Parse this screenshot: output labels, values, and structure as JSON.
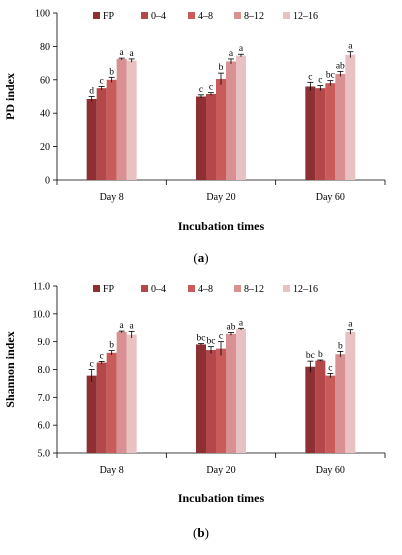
{
  "legend_labels": [
    "FP",
    "0–4",
    "4–8",
    "8–12",
    "12–16"
  ],
  "colors": [
    "#8E3033",
    "#B3474A",
    "#C95B5B",
    "#D99093",
    "#E8C1C2"
  ],
  "chart_data": [
    {
      "type": "bar",
      "panel_label": "(a)",
      "panel_letter": "a",
      "xlabel": "Incubation times",
      "ylabel": "PD index",
      "ylim": [
        0,
        100
      ],
      "yticks": [
        "0",
        "20",
        "40",
        "60",
        "80",
        "100"
      ],
      "categories": [
        "Day 8",
        "Day 20",
        "Day 60"
      ],
      "legend_position": "top",
      "series": [
        {
          "name": "FP",
          "values": [
            48.5,
            50,
            56
          ],
          "errors": [
            1.5,
            1,
            2.5
          ],
          "sig": [
            "d",
            "c",
            "c"
          ]
        },
        {
          "name": "0–4",
          "values": [
            55,
            51.5,
            55
          ],
          "errors": [
            1,
            0.8,
            1.5
          ],
          "sig": [
            "c",
            "c",
            "c"
          ]
        },
        {
          "name": "4–8",
          "values": [
            60,
            60.5,
            58
          ],
          "errors": [
            1.5,
            3.5,
            1.5
          ],
          "sig": [
            "b",
            "b",
            "bc"
          ]
        },
        {
          "name": "8–12",
          "values": [
            72.5,
            71,
            63.5
          ],
          "errors": [
            0.5,
            1.5,
            1.5
          ],
          "sig": [
            "a",
            "a",
            "ab"
          ]
        },
        {
          "name": "12–16",
          "values": [
            71.5,
            74.5,
            75
          ],
          "errors": [
            1,
            0.8,
            1.8
          ],
          "sig": [
            "a",
            "a",
            "a"
          ]
        }
      ]
    },
    {
      "type": "bar",
      "panel_label": "(b)",
      "panel_letter": "b",
      "xlabel": "Incubation times",
      "ylabel": "Shannon index",
      "ylim": [
        5,
        11
      ],
      "yticks": [
        "5.0",
        "6.0",
        "7.0",
        "8.0",
        "9.0",
        "10.0",
        "11.0"
      ],
      "categories": [
        "Day 8",
        "Day 20",
        "Day 60"
      ],
      "legend_position": "top",
      "series": [
        {
          "name": "FP",
          "values": [
            7.78,
            8.9,
            8.1
          ],
          "errors": [
            0.22,
            0.03,
            0.2
          ],
          "sig": [
            "c",
            "bc",
            "bc"
          ]
        },
        {
          "name": "0–4",
          "values": [
            8.25,
            8.7,
            8.32
          ],
          "errors": [
            0.04,
            0.12,
            0.02
          ],
          "sig": [
            "c",
            "bc",
            "b"
          ]
        },
        {
          "name": "4–8",
          "values": [
            8.6,
            8.75,
            7.78
          ],
          "errors": [
            0.08,
            0.25,
            0.08
          ],
          "sig": [
            "b",
            "c",
            "c"
          ]
        },
        {
          "name": "8–12",
          "values": [
            9.35,
            9.28,
            8.55
          ],
          "errors": [
            0.03,
            0.05,
            0.1
          ],
          "sig": [
            "a",
            "ab",
            "b"
          ]
        },
        {
          "name": "12–16",
          "values": [
            9.25,
            9.45,
            9.35
          ],
          "errors": [
            0.12,
            0.03,
            0.08
          ],
          "sig": [
            "a",
            "a",
            "a"
          ]
        }
      ]
    }
  ]
}
